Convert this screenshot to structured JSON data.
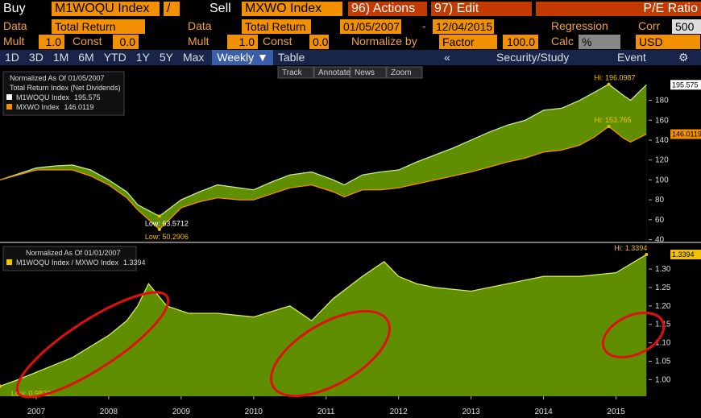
{
  "toolbar": {
    "row1": {
      "buy": "Buy",
      "security1": "M1WOQU Index",
      "op": "/",
      "sell": "Sell",
      "security2": "MXWO Index",
      "actions": "96) Actions",
      "edit": "97) Edit",
      "ratio": "P/E Ratio"
    },
    "row2": {
      "data1": "Data",
      "field1": "Total Return",
      "data2": "Data",
      "field2": "Total Return",
      "start": "01/05/2007",
      "dash": "-",
      "end": "12/04/2015",
      "regression": "Regression",
      "corr": "Corr",
      "corr_value": "500"
    },
    "row3": {
      "mult1": "Mult",
      "mult1_value": "1.0",
      "const1": "Const",
      "const1_value": "0.0",
      "mult2": "Mult",
      "mult2_value": "1.0",
      "const2": "Const",
      "const2_value": "0.0",
      "normalize": "Normalize by",
      "factor": "Factor",
      "factor_value": "100.0",
      "calc": "Calc",
      "calc_value": "%",
      "currency": "USD"
    },
    "row4": [
      "1D",
      "3D",
      "1M",
      "6M",
      "YTD",
      "1Y",
      "5Y",
      "Max",
      "Weekly ▼",
      "Table"
    ],
    "row4_right": {
      "back": "«",
      "study": "Security/Study",
      "event": "Event",
      "settings": "⚙"
    },
    "tools": [
      "Track",
      "Annotate",
      "News",
      "Zoom"
    ]
  },
  "chart_data": [
    {
      "type": "line",
      "legend_title": "Normalized As Of 01/05/2007",
      "legend_subtitle": "Total Return Index (Net Dividends)",
      "x": [
        2007.0,
        2007.25,
        2007.5,
        2007.75,
        2008.0,
        2008.25,
        2008.5,
        2008.75,
        2008.9,
        2009.2,
        2009.5,
        2009.75,
        2010.0,
        2010.3,
        2010.5,
        2010.75,
        2011.0,
        2011.3,
        2011.6,
        2011.75,
        2012.0,
        2012.25,
        2012.5,
        2012.75,
        2013.0,
        2013.25,
        2013.5,
        2013.75,
        2014.0,
        2014.25,
        2014.5,
        2014.75,
        2015.0,
        2015.2,
        2015.4,
        2015.6,
        2015.7,
        2015.92
      ],
      "series": [
        {
          "name": "M1WOQU Index",
          "color": "#c8e6a0",
          "values": [
            100,
            106,
            112,
            114,
            115,
            110,
            100,
            88,
            75,
            63.5712,
            80,
            88,
            95,
            92,
            90,
            98,
            105,
            108,
            100,
            95,
            105,
            108,
            110,
            118,
            125,
            132,
            140,
            148,
            155,
            160,
            170,
            172,
            180,
            188,
            196.0987,
            185,
            180,
            195.575
          ]
        },
        {
          "name": "MXWO Index",
          "color": "#f29000",
          "values": [
            100,
            105,
            110,
            110,
            110,
            104,
            95,
            82,
            70,
            50.2906,
            72,
            78,
            82,
            80,
            80,
            86,
            92,
            95,
            88,
            83,
            90,
            90,
            92,
            96,
            100,
            104,
            108,
            113,
            118,
            122,
            128,
            130,
            135,
            143,
            153.765,
            142,
            138,
            146.0119
          ]
        }
      ],
      "xlim": [
        2007,
        2015.95
      ],
      "ylim": [
        38,
        212
      ],
      "yticks": [
        40,
        60,
        80,
        100,
        120,
        140,
        160,
        180
      ],
      "annotations": [
        {
          "text": "Hi: 196.0987",
          "x": 2015.4,
          "y": 196.0987
        },
        {
          "text": "Hi: 153.765",
          "x": 2015.4,
          "y": 153.765
        },
        {
          "text": "Low: 63.5712",
          "x": 2009.2,
          "y": 63.5712
        },
        {
          "text": "Low: 50.2906",
          "x": 2009.2,
          "y": 50.2906
        }
      ]
    },
    {
      "type": "area",
      "legend_title": "Normalized As Of 01/01/2007",
      "x": [
        2007.0,
        2007.25,
        2007.5,
        2007.75,
        2008.0,
        2008.25,
        2008.5,
        2008.75,
        2008.9,
        2009.05,
        2009.3,
        2009.6,
        2010.0,
        2010.5,
        2011.0,
        2011.3,
        2011.6,
        2012.0,
        2012.3,
        2012.5,
        2012.75,
        2013.0,
        2013.5,
        2014.0,
        2014.5,
        2015.0,
        2015.5,
        2015.92
      ],
      "series": [
        {
          "name": "M1WOQU Index / MXWO Index",
          "color": "#5f8f00",
          "values": [
            0.9822,
            1.0,
            1.02,
            1.04,
            1.06,
            1.09,
            1.12,
            1.16,
            1.2,
            1.26,
            1.2,
            1.18,
            1.18,
            1.17,
            1.2,
            1.16,
            1.22,
            1.28,
            1.32,
            1.28,
            1.26,
            1.25,
            1.24,
            1.26,
            1.28,
            1.28,
            1.29,
            1.3394
          ]
        }
      ],
      "xlim": [
        2007,
        2015.95
      ],
      "ylim": [
        0.955,
        1.37
      ],
      "yticks": [
        {
          "value": 1.0,
          "label": "1.00"
        },
        1.05,
        {
          "value": 1.1,
          "label": "1.10"
        },
        1.15,
        {
          "value": 1.2,
          "label": "1.20"
        },
        1.25,
        {
          "value": 1.3,
          "label": "1.30"
        }
      ],
      "xticks": [
        {
          "value": 2007.5,
          "label": "2007"
        },
        {
          "value": 2008.5,
          "label": "2008"
        },
        {
          "value": 2009.5,
          "label": "2009"
        },
        {
          "value": 2010.5,
          "label": "2010"
        },
        {
          "value": 2011.5,
          "label": "2011"
        },
        {
          "value": 2012.5,
          "label": "2012"
        },
        {
          "value": 2013.5,
          "label": "2013"
        },
        {
          "value": 2014.5,
          "label": "2014"
        },
        {
          "value": 2015.5,
          "label": "2015"
        }
      ],
      "annotations": [
        {
          "text": "Hi: 1.3394",
          "x": 2015.92,
          "y": 1.3394
        },
        {
          "text": "Low: 0.9822",
          "x": 2007.0,
          "y": 0.9822
        }
      ]
    }
  ]
}
